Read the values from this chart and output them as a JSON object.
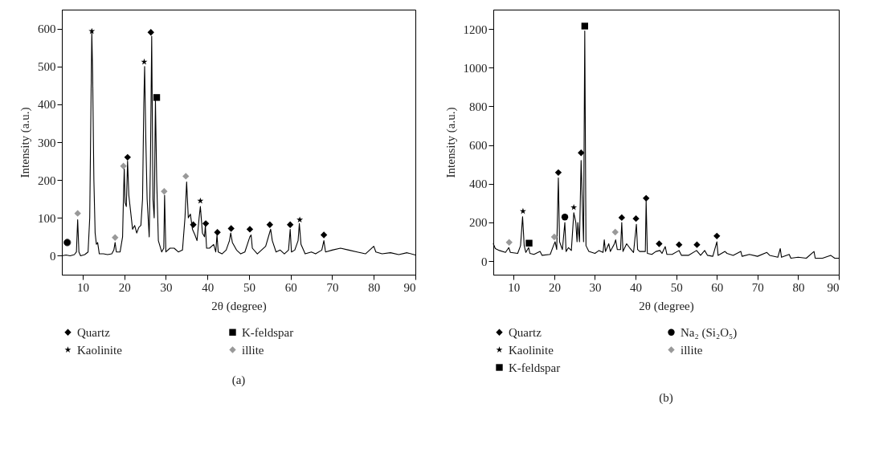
{
  "chart_data": [
    {
      "type": "line",
      "xlabel": "2θ (degree)",
      "ylabel": "Intensity (a.u.)",
      "annotations": [
        "(a)"
      ],
      "xlim": [
        5,
        90
      ],
      "ylim": [
        -50,
        650
      ],
      "xticks": [
        10,
        20,
        30,
        40,
        50,
        60,
        70,
        80,
        90
      ],
      "yticks": [
        0,
        100,
        200,
        300,
        400,
        500,
        600
      ],
      "grid": false,
      "legend": "bottom",
      "series": [
        {
          "color": "#000000",
          "marker": "none",
          "x": [
            5,
            6,
            7,
            8,
            8.5,
            8.8,
            9.1,
            9.5,
            10.5,
            11.3,
            11.7,
            12.0,
            12.2,
            12.4,
            12.7,
            13.0,
            13.3,
            13.6,
            14,
            15,
            16,
            17,
            17.5,
            17.8,
            18.1,
            19,
            19.6,
            19.8,
            20.0,
            20.2,
            20.5,
            20.8,
            21.1,
            21.5,
            22,
            22.5,
            23,
            23.5,
            24,
            24.4,
            24.7,
            24.9,
            25.2,
            25.5,
            26,
            26.3,
            26.6,
            26.9,
            27.2,
            27.5,
            27.8,
            28.2,
            29,
            29.5,
            29.7,
            30,
            31,
            32,
            33,
            34,
            34.6,
            35.0,
            35.4,
            35.9,
            36.4,
            37,
            37.5,
            38.0,
            38.3,
            38.8,
            39.3,
            39.5,
            39.8,
            40.5,
            41.5,
            42,
            42.3,
            42.6,
            43.5,
            44.5,
            45.3,
            45.6,
            46,
            47,
            48,
            49,
            50.2,
            50.5,
            50.8,
            52,
            53,
            54,
            54.8,
            55.2,
            55.6,
            56.5,
            57.5,
            58.5,
            59.5,
            59.9,
            60.2,
            61,
            61.8,
            62.1,
            62.5,
            63.5,
            65,
            66,
            67.5,
            68.0,
            68.4,
            70,
            72,
            74,
            76,
            78,
            80,
            80.5,
            82,
            84,
            86,
            88,
            90
          ],
          "values": [
            0,
            2,
            0,
            3,
            10,
            95,
            10,
            0,
            3,
            10,
            100,
            400,
            590,
            480,
            200,
            60,
            30,
            35,
            5,
            5,
            3,
            5,
            15,
            35,
            10,
            10,
            50,
            150,
            230,
            140,
            130,
            250,
            160,
            120,
            70,
            80,
            60,
            75,
            80,
            150,
            400,
            500,
            300,
            150,
            50,
            250,
            580,
            150,
            100,
            410,
            200,
            40,
            10,
            20,
            160,
            10,
            20,
            20,
            10,
            15,
            100,
            195,
            100,
            110,
            70,
            55,
            40,
            100,
            130,
            60,
            50,
            80,
            20,
            20,
            30,
            10,
            55,
            10,
            5,
            15,
            40,
            60,
            35,
            15,
            5,
            10,
            50,
            55,
            20,
            5,
            15,
            25,
            55,
            70,
            40,
            10,
            15,
            5,
            15,
            70,
            10,
            15,
            40,
            85,
            30,
            5,
            10,
            5,
            15,
            40,
            10,
            15,
            20,
            15,
            10,
            5,
            25,
            10,
            5,
            8,
            3,
            8,
            2
          ]
        },
        {
          "type": "scatter",
          "name": "Quartz",
          "color": "#000000",
          "marker": "diamond",
          "x": [
            20.8,
            26.4,
            36.6,
            39.6,
            42.4,
            45.7,
            50.2,
            55.0,
            59.9,
            68.0
          ],
          "values": [
            260,
            590,
            82,
            85,
            62,
            72,
            70,
            82,
            82,
            55
          ]
        },
        {
          "type": "scatter",
          "name": "K-feldspar",
          "color": "#000000",
          "marker": "square",
          "x": [
            27.8
          ],
          "values": [
            418
          ]
        },
        {
          "type": "scatter",
          "name": "Kaolinite",
          "color": "#000000",
          "marker": "star",
          "x": [
            12.2,
            24.8,
            38.3,
            62.2
          ],
          "values": [
            593,
            512,
            145,
            95
          ]
        },
        {
          "type": "scatter",
          "name": "illite",
          "color": "#999999",
          "marker": "diamond",
          "x": [
            8.8,
            17.8,
            19.8,
            29.6,
            34.8
          ],
          "values": [
            112,
            48,
            237,
            170,
            210
          ]
        },
        {
          "type": "scatter",
          "color": "#000000",
          "marker": "circle",
          "x": [
            6.3
          ],
          "values": [
            35
          ]
        }
      ]
    },
    {
      "type": "line",
      "xlabel": "2θ (degree)",
      "ylabel": "Intensity (a.u.)",
      "annotations": [
        "(b)"
      ],
      "xlim": [
        5,
        90
      ],
      "ylim": [
        -70,
        1300
      ],
      "xticks": [
        10,
        20,
        30,
        40,
        50,
        60,
        70,
        80,
        90
      ],
      "yticks": [
        0,
        200,
        400,
        600,
        800,
        1000,
        1200
      ],
      "grid": false,
      "legend": "bottom",
      "series": [
        {
          "color": "#000000",
          "marker": "none",
          "x": [
            5,
            5.5,
            6.5,
            8,
            8.8,
            9.2,
            11,
            11.7,
            12.2,
            12.6,
            13,
            13.7,
            14,
            15,
            16.5,
            17,
            19,
            19.8,
            20.2,
            20.6,
            21.0,
            21.3,
            22,
            22.6,
            22.9,
            23.5,
            24.2,
            24.8,
            25.3,
            25.6,
            25.8,
            26.2,
            26.6,
            26.9,
            27.2,
            27.5,
            27.8,
            28.5,
            30,
            31,
            32,
            32.3,
            32.6,
            33.4,
            33.8,
            34.8,
            35.1,
            35.5,
            36.3,
            36.6,
            36.9,
            37.8,
            38.5,
            39.5,
            40.2,
            40.5,
            41,
            42.4,
            42.6,
            42.9,
            44,
            45,
            46,
            46.5,
            47.3,
            47.7,
            49,
            50.7,
            51.3,
            53,
            55,
            56,
            57,
            57.7,
            59,
            60.0,
            60.3,
            62,
            62.5,
            64,
            65.9,
            66.2,
            68,
            70,
            72.3,
            73,
            75,
            75.6,
            75.9,
            77.8,
            78.2,
            80,
            82,
            83.9,
            84.2,
            86,
            88,
            89,
            90
          ],
          "values": [
            90,
            65,
            55,
            45,
            70,
            45,
            40,
            80,
            230,
            80,
            45,
            70,
            40,
            35,
            50,
            30,
            35,
            80,
            100,
            60,
            430,
            100,
            60,
            200,
            50,
            70,
            55,
            250,
            200,
            100,
            200,
            100,
            520,
            300,
            100,
            1190,
            80,
            50,
            40,
            55,
            45,
            110,
            50,
            90,
            50,
            90,
            110,
            60,
            60,
            200,
            50,
            90,
            70,
            45,
            190,
            60,
            50,
            50,
            310,
            40,
            35,
            50,
            55,
            40,
            75,
            35,
            35,
            55,
            30,
            30,
            55,
            30,
            55,
            30,
            25,
            100,
            30,
            50,
            40,
            30,
            50,
            25,
            35,
            25,
            45,
            30,
            20,
            65,
            20,
            35,
            15,
            20,
            15,
            50,
            15,
            15,
            30,
            15,
            15
          ]
        },
        {
          "type": "scatter",
          "name": "Quartz",
          "color": "#000000",
          "marker": "diamond",
          "x": [
            21.0,
            26.6,
            36.6,
            40.1,
            42.6,
            45.8,
            50.7,
            55.1,
            60.0
          ],
          "values": [
            458,
            560,
            225,
            220,
            325,
            90,
            85,
            85,
            130
          ]
        },
        {
          "type": "scatter",
          "name": "Na₂ (Si₂O₅)",
          "color": "#000000",
          "marker": "circle",
          "x": [
            22.6
          ],
          "values": [
            228
          ]
        },
        {
          "type": "scatter",
          "name": "Kaolinite",
          "color": "#000000",
          "marker": "star",
          "x": [
            12.3,
            24.8
          ],
          "values": [
            258,
            278
          ]
        },
        {
          "type": "scatter",
          "name": "illite",
          "color": "#999999",
          "marker": "diamond",
          "x": [
            8.9,
            20.0,
            35.0
          ],
          "values": [
            97,
            125,
            150
          ]
        },
        {
          "type": "scatter",
          "name": "K-feldspar",
          "color": "#000000",
          "marker": "square",
          "x": [
            13.8,
            27.5
          ],
          "values": [
            93,
            1215
          ]
        }
      ]
    }
  ]
}
